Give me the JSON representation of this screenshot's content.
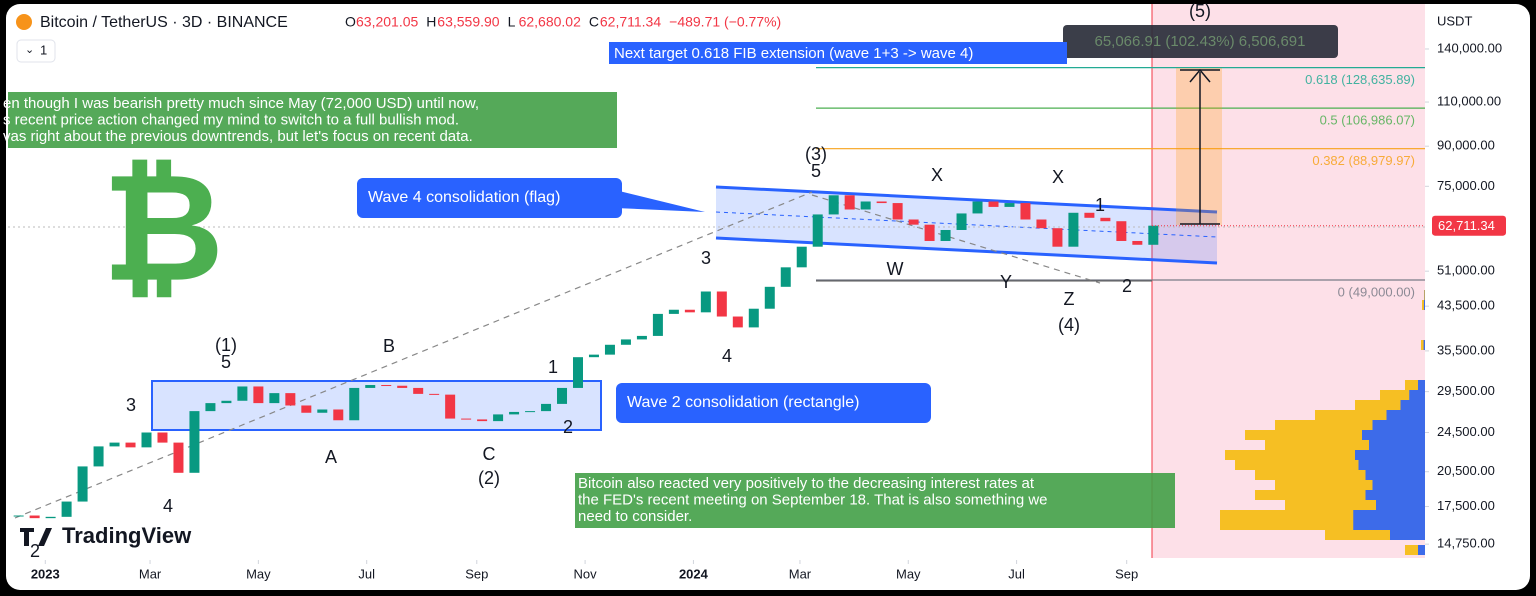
{
  "chart_data": {
    "type": "candlestick",
    "header": {
      "symbol": "Bitcoin / TetherUS · 3D · BINANCE",
      "ohlc": [
        {
          "key": "O",
          "value": "63,201.05"
        },
        {
          "key": "H",
          "value": "63,559.90"
        },
        {
          "key": "L",
          "value": "62,680.02"
        },
        {
          "key": "C",
          "value": "62,711.34"
        }
      ],
      "change": "−489.71 (−0.77%)",
      "interval": "1"
    },
    "y_unit": "USDT",
    "log_scale": true,
    "up_color": "#089981",
    "down_color": "#f23645",
    "x": [
      -15,
      -6,
      3,
      12,
      21,
      30,
      39,
      48,
      57,
      66,
      75,
      84,
      93,
      102,
      111,
      120,
      129,
      138,
      147,
      156,
      165,
      174,
      183,
      192,
      201,
      210,
      219,
      228,
      237,
      246,
      255,
      264,
      273,
      282,
      291,
      300,
      309,
      318,
      327,
      336,
      345,
      354,
      363,
      372,
      381,
      390,
      399,
      408,
      417,
      426,
      435,
      444,
      453,
      462,
      471,
      480,
      489,
      498,
      507,
      516,
      525,
      534,
      543,
      552,
      561,
      570,
      579,
      588,
      597,
      606,
      615,
      624
    ],
    "values": [
      16800,
      16600,
      16700,
      17900,
      21000,
      23000,
      23400,
      22900,
      24500,
      23400,
      20400,
      27000,
      28000,
      28300,
      30200,
      28000,
      29300,
      27700,
      26800,
      27200,
      25900,
      30000,
      30400,
      30300,
      30000,
      29200,
      29100,
      26100,
      26000,
      25800,
      26600,
      26900,
      27000,
      27900,
      30000,
      34500,
      34900,
      36500,
      37400,
      38000,
      42000,
      42800,
      42300,
      46500,
      41500,
      39500,
      43000,
      47500,
      51900,
      57000,
      66000,
      72000,
      67500,
      70000,
      69500,
      64500,
      63000,
      58500,
      61500,
      66300,
      70000,
      68300,
      69500,
      64500,
      62000,
      57000,
      66500,
      65000,
      64000,
      58500,
      57500,
      62711.34
    ],
    "xlim": [
      -21,
      777
    ],
    "xticks": [
      {
        "value": 0,
        "label": "2023"
      },
      {
        "value": 59,
        "label": "Mar"
      },
      {
        "value": 120,
        "label": "May"
      },
      {
        "value": 181,
        "label": "Jul"
      },
      {
        "value": 243,
        "label": "Sep"
      },
      {
        "value": 304,
        "label": "Nov"
      },
      {
        "value": 365,
        "label": "2024"
      },
      {
        "value": 425,
        "label": "Mar"
      },
      {
        "value": 486,
        "label": "May"
      },
      {
        "value": 547,
        "label": "Jul"
      },
      {
        "value": 609,
        "label": "Sep"
      }
    ],
    "ylim": [
      13725,
      174900
    ],
    "yticks": [
      {
        "value": 140000,
        "label": "140,000.00"
      },
      {
        "value": 110000,
        "label": "110,000.00"
      },
      {
        "value": 90000,
        "label": "90,000.00"
      },
      {
        "value": 75000,
        "label": "75,000.00"
      },
      {
        "value": 51000,
        "label": "51,000.00"
      },
      {
        "value": 43500,
        "label": "43,500.00"
      },
      {
        "value": 35500,
        "label": "35,500.00"
      },
      {
        "value": 29500,
        "label": "29,500.00"
      },
      {
        "value": 24500,
        "label": "24,500.00"
      },
      {
        "value": 20500,
        "label": "20,500.00"
      },
      {
        "value": 17500,
        "label": "17,500.00"
      },
      {
        "value": 14750,
        "label": "14,750.00"
      }
    ],
    "last_price": {
      "value": 62711.34,
      "label": "62,711.34"
    },
    "fib_levels": [
      {
        "value": 128635.89,
        "label": "0.618 (128,635.89)",
        "color": "#22ab94"
      },
      {
        "value": 106986.07,
        "label": "0.5 (106,986.07)",
        "color": "#4caf50"
      },
      {
        "value": 88979.97,
        "label": "0.382 (88,979.97)",
        "color": "#f7a21b"
      },
      {
        "value": 49000,
        "label": "0 (49,000.00)",
        "color": "#787b86"
      }
    ],
    "measure_label": "65,066.91 (102.43%) 6,506,691",
    "target_label": "Next target 0.618 FIB extension (wave 1+3 -> wave 4)",
    "callouts": [
      "Wave 4 consolidation (flag)",
      "Wave 2 consolidation (rectangle)"
    ],
    "note_top": [
      "en though I was bearish pretty much since May (72,000 USD) until now,",
      "s recent price action changed my mind to switch to a full bullish mod.",
      "vas right about the previous downtrends, but let's focus on recent data."
    ],
    "note_bottom": [
      "Bitcoin also reacted very positively to the decreasing interest rates at",
      "the FED's recent meeting on September 18. That is also something we",
      "need to consider."
    ],
    "wave_labels": [
      "(1)",
      "5",
      "3",
      "4",
      "2",
      "B",
      "A",
      "C",
      "(2)",
      "1",
      "2",
      "3",
      "4",
      "(3)",
      "5",
      "W",
      "X",
      "Y",
      "X",
      "Z",
      "(4)",
      "1",
      "2",
      "(5)"
    ],
    "logo_symbol": "₿",
    "brand": "TradingView"
  }
}
